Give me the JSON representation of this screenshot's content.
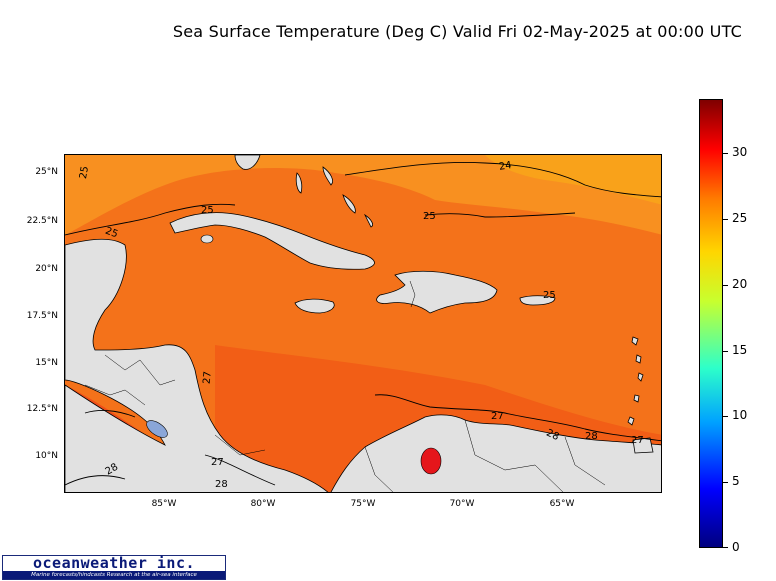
{
  "title": "Sea Surface Temperature (Deg C) Valid Fri 02-May-2025 at 00:00 UTC",
  "map": {
    "region": "Caribbean Sea",
    "latitude_labels": [
      "25°N",
      "22.5°N",
      "20°N",
      "17.5°N",
      "15°N",
      "12.5°N",
      "10°N"
    ],
    "longitude_labels": [
      "85°W",
      "80°W",
      "75°W",
      "70°W",
      "65°W"
    ],
    "contour_labels": [
      "25",
      "24",
      "25",
      "25",
      "25",
      "25",
      "27",
      "28",
      "27",
      "27",
      "28",
      "27",
      "28",
      "28"
    ],
    "colors": {
      "ocean_warm": "#f4721a",
      "ocean_cooler": "#f89a10",
      "land": "#e1e1e1",
      "hot_lake": "#e5161b",
      "cold_lake": "#8aa6d8"
    }
  },
  "colorbar": {
    "ticks": [
      "30",
      "25",
      "20",
      "15",
      "10",
      "5",
      "0"
    ],
    "range": [
      0,
      34
    ],
    "colormap": "jet"
  },
  "logo": {
    "name": "oceanweather inc.",
    "tagline": "Marine forecasts/hindcasts   Research at the air-sea interface"
  }
}
